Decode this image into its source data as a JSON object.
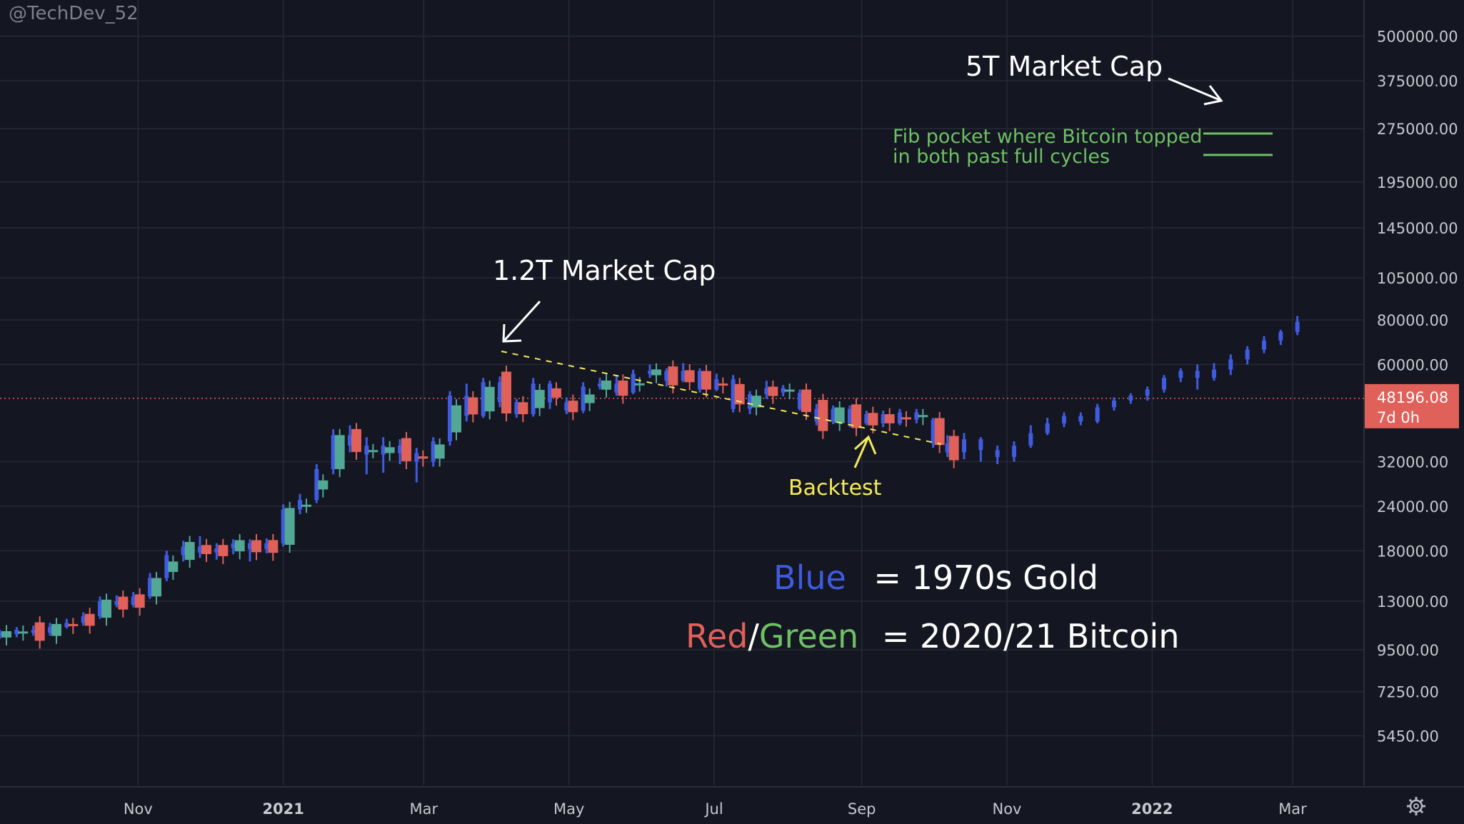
{
  "watermark": "@TechDev_52",
  "colors": {
    "background": "#141621",
    "grid": "#262a37",
    "blue": "#3f5be0",
    "red": "#e0605a",
    "green": "#52a894",
    "fib": "#6ec065",
    "yellow": "#f3ea5b",
    "price_tag": "#e0605a",
    "price_line": "#e0605a"
  },
  "chart_data": {
    "type": "candlestick",
    "scale": "log",
    "ylim": [
      4800,
      560000
    ],
    "y_ticks": [
      "500000.00",
      "375000.00",
      "275000.00",
      "195000.00",
      "145000.00",
      "105000.00",
      "80000.00",
      "60000.00",
      "32000.00",
      "24000.00",
      "18000.00",
      "13000.00",
      "9500.00",
      "7250.00",
      "5450.00"
    ],
    "x_ticks": [
      {
        "label": "Nov",
        "bold": false
      },
      {
        "label": "2021",
        "bold": true
      },
      {
        "label": "Mar",
        "bold": false
      },
      {
        "label": "May",
        "bold": false
      },
      {
        "label": "Jul",
        "bold": false
      },
      {
        "label": "Sep",
        "bold": false
      },
      {
        "label": "Nov",
        "bold": false
      },
      {
        "label": "2022",
        "bold": true
      },
      {
        "label": "Mar",
        "bold": false
      }
    ],
    "xlim": [
      "2020-09-04",
      "2022-03-28"
    ],
    "current_price": {
      "value": 48196.08,
      "label": "48196.08",
      "countdown": "7d 0h"
    },
    "series": [
      {
        "name": "1970s Gold",
        "style": "blue_bars",
        "candles": [
          [
            "2020-09-04",
            10600,
            10400,
            10800,
            10200
          ],
          [
            "2020-09-11",
            10500,
            10800,
            11000,
            10300
          ],
          [
            "2020-09-18",
            10800,
            10600,
            11100,
            10400
          ],
          [
            "2020-09-25",
            10600,
            11000,
            11300,
            10400
          ],
          [
            "2020-10-02",
            11000,
            11300,
            11600,
            10900
          ],
          [
            "2020-10-09",
            11300,
            11800,
            12100,
            11100
          ],
          [
            "2020-10-16",
            11800,
            13000,
            13400,
            11600
          ],
          [
            "2020-10-23",
            13000,
            12700,
            13500,
            12500
          ],
          [
            "2020-10-30",
            12700,
            13400,
            13800,
            12500
          ],
          [
            "2020-11-06",
            13400,
            15100,
            15600,
            13200
          ],
          [
            "2020-11-13",
            15100,
            17500,
            18000,
            14800
          ],
          [
            "2020-11-20",
            17500,
            18500,
            19200,
            16800
          ],
          [
            "2020-11-27",
            18500,
            17800,
            19800,
            17200
          ],
          [
            "2020-12-04",
            17800,
            18300,
            18900,
            17000
          ],
          [
            "2020-12-11",
            18300,
            18900,
            19400,
            17600
          ],
          [
            "2020-12-18",
            18900,
            18200,
            19400,
            16800
          ],
          [
            "2020-12-25",
            18200,
            18900,
            19500,
            17700
          ],
          [
            "2021-01-01",
            18900,
            23500,
            24300,
            18500
          ],
          [
            "2021-01-08",
            23500,
            25000,
            26000,
            22800
          ],
          [
            "2021-01-15",
            25000,
            30500,
            31500,
            24500
          ],
          [
            "2021-01-22",
            30500,
            38000,
            39500,
            29500
          ],
          [
            "2021-01-29",
            38000,
            35500,
            40500,
            34000
          ],
          [
            "2021-02-05",
            35500,
            33500,
            37500,
            29500
          ],
          [
            "2021-02-12",
            33500,
            35500,
            37500,
            29800
          ],
          [
            "2021-02-19",
            35500,
            33800,
            37000,
            31500
          ],
          [
            "2021-02-26",
            33800,
            32000,
            35000,
            28000
          ],
          [
            "2021-03-05",
            32000,
            36500,
            37500,
            31000
          ],
          [
            "2021-03-12",
            36500,
            49000,
            50500,
            35500
          ],
          [
            "2021-03-19",
            49000,
            43000,
            53000,
            41500
          ],
          [
            "2021-03-26",
            43000,
            53500,
            55000,
            42500
          ],
          [
            "2021-04-02",
            53500,
            47000,
            55500,
            45500
          ],
          [
            "2021-04-09",
            47000,
            43500,
            48000,
            42500
          ],
          [
            "2021-04-16",
            43500,
            53000,
            55000,
            42800
          ],
          [
            "2021-04-23",
            53000,
            47000,
            54000,
            45000
          ],
          [
            "2021-04-30",
            47000,
            44500,
            48500,
            43500
          ],
          [
            "2021-05-07",
            44500,
            52000,
            53500,
            43800
          ],
          [
            "2021-05-14",
            52000,
            53000,
            55000,
            51000
          ],
          [
            "2021-05-21",
            53000,
            50000,
            56000,
            49000
          ],
          [
            "2021-05-28",
            50000,
            56500,
            58000,
            49500
          ],
          [
            "2021-06-04",
            56500,
            57500,
            60000,
            55000
          ],
          [
            "2021-06-11",
            57500,
            54000,
            58500,
            52000
          ],
          [
            "2021-06-18",
            54000,
            57500,
            60500,
            53500
          ],
          [
            "2021-06-25",
            57500,
            51000,
            58500,
            50000
          ],
          [
            "2021-07-02",
            51000,
            54500,
            56500,
            50500
          ],
          [
            "2021-07-09",
            54500,
            45000,
            56000,
            44000
          ],
          [
            "2021-07-16",
            45000,
            49500,
            50500,
            43500
          ],
          [
            "2021-07-23",
            49500,
            51500,
            54000,
            48000
          ],
          [
            "2021-07-30",
            51500,
            50000,
            52500,
            48800
          ],
          [
            "2021-08-06",
            50000,
            45000,
            51000,
            44500
          ],
          [
            "2021-08-13",
            45000,
            41500,
            46500,
            40500
          ],
          [
            "2021-08-20",
            41500,
            45000,
            46000,
            40800
          ],
          [
            "2021-08-27",
            45000,
            41000,
            46000,
            40000
          ],
          [
            "2021-09-03",
            41000,
            43500,
            44500,
            40500
          ],
          [
            "2021-09-10",
            43500,
            41000,
            44500,
            40000
          ],
          [
            "2021-09-17",
            41000,
            44000,
            45000,
            40500
          ],
          [
            "2021-09-24",
            44000,
            42000,
            45000,
            41000
          ],
          [
            "2021-09-31",
            42000,
            36000,
            42500,
            35000
          ],
          [
            "2021-10-07",
            36000,
            34000,
            38000,
            33000
          ],
          [
            "2021-10-14",
            34000,
            37000,
            38500,
            32500
          ],
          [
            "2021-10-21",
            37000,
            34500,
            37500,
            32000
          ],
          [
            "2021-10-28",
            34500,
            33000,
            35500,
            31500
          ],
          [
            "2021-11-04",
            33000,
            35500,
            36500,
            32000
          ],
          [
            "2021-11-11",
            35500,
            38500,
            40500,
            35000
          ],
          [
            "2021-11-18",
            38500,
            41000,
            42500,
            38000
          ],
          [
            "2021-11-25",
            41000,
            43000,
            44000,
            40000
          ],
          [
            "2021-12-02",
            43000,
            41500,
            44000,
            40500
          ],
          [
            "2021-12-09",
            41500,
            45500,
            46500,
            41000
          ],
          [
            "2021-12-16",
            45500,
            47500,
            48500,
            44500
          ],
          [
            "2021-12-23",
            47500,
            49000,
            49800,
            46500
          ],
          [
            "2021-12-30",
            49000,
            51000,
            52000,
            47500
          ],
          [
            "2022-01-06",
            51000,
            55000,
            56000,
            50000
          ],
          [
            "2022-01-13",
            55000,
            57500,
            58500,
            53500
          ],
          [
            "2022-01-20",
            57500,
            55000,
            60000,
            51000
          ],
          [
            "2022-01-27",
            55000,
            58000,
            60500,
            54000
          ],
          [
            "2022-02-03",
            58000,
            62000,
            64000,
            56000
          ],
          [
            "2022-02-10",
            62000,
            66000,
            67500,
            60000
          ],
          [
            "2022-02-17",
            66000,
            70000,
            72000,
            64500
          ],
          [
            "2022-02-24",
            70000,
            74000,
            75000,
            68000
          ],
          [
            "2022-03-03",
            74000,
            79000,
            82000,
            72500
          ]
        ]
      },
      {
        "name": "2020/21 Bitcoin",
        "style": "red_green_candles",
        "candles": []
      }
    ]
  },
  "annotations": {
    "market_cap_5t": "5T Market Cap",
    "market_cap_12t": "1.2T Market Cap",
    "fib_line1": "Fib pocket where Bitcoin topped",
    "fib_line2": "in both past full cycles",
    "backtest": "Backtest",
    "legend_blue_word": "Blue",
    "legend_blue_rest": "= 1970s Gold",
    "legend_red_word": "Red",
    "legend_slash": "/",
    "legend_green_word": "Green",
    "legend_rg_rest": "= 2020/21 Bitcoin"
  },
  "settings_icon": "gear-icon"
}
